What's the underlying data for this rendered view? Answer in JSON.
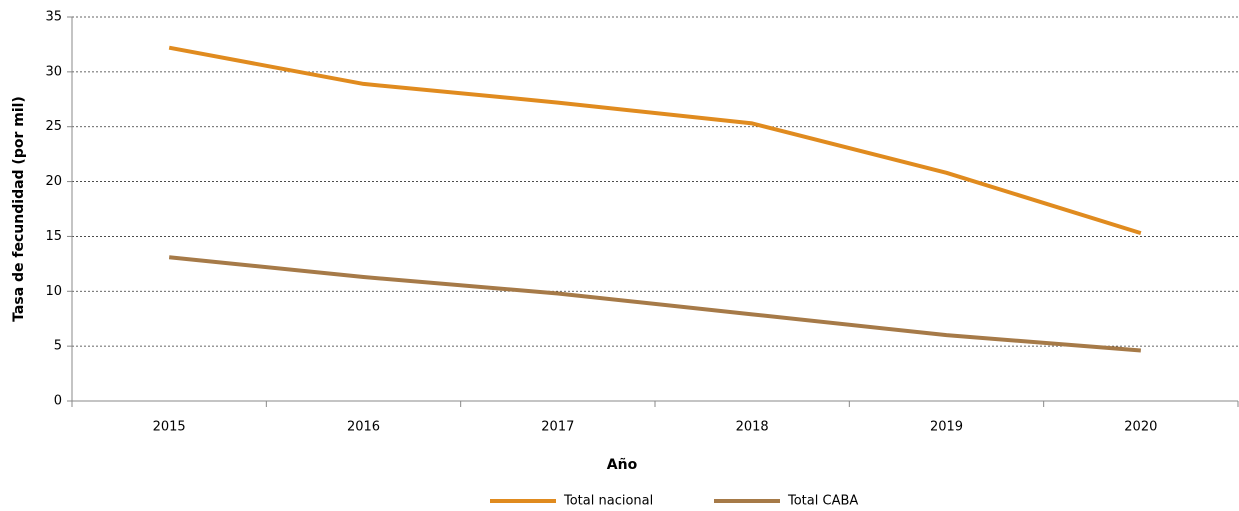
{
  "chart_data": {
    "type": "line",
    "x_label": "Año",
    "y_label": "Tasa de fecundidad (por mil)",
    "categories": [
      "2015",
      "2016",
      "2017",
      "2018",
      "2019",
      "2020"
    ],
    "series": [
      {
        "name": "Total nacional",
        "color": "#e08b1f",
        "values": [
          32.2,
          28.9,
          27.2,
          25.3,
          20.8,
          15.3
        ]
      },
      {
        "name": "Total CABA",
        "color": "#a67a48",
        "values": [
          13.1,
          11.3,
          9.8,
          7.9,
          6.0,
          4.6
        ]
      }
    ],
    "ylim": [
      0,
      35
    ],
    "yticks": [
      0,
      5,
      10,
      15,
      20,
      25,
      30,
      35
    ],
    "grid": true,
    "legend": "bottom"
  }
}
